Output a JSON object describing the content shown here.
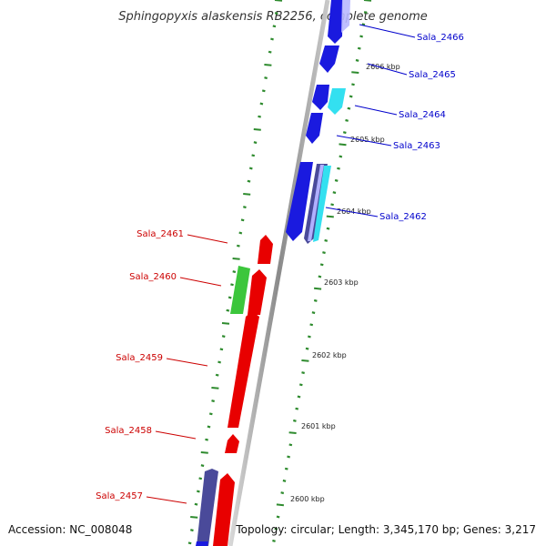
{
  "title": "Sphingopyxis alaskensis RB2256, complete genome",
  "accession": "Accession: NC_008048",
  "summary": "Topology: circular; Length: 3,345,170 bp; Genes: 3,217",
  "colors": {
    "forward": "#1a1adf",
    "reverse": "#e80000",
    "cyan": "#33e0f0",
    "green": "#3cc63c",
    "purple": "#4a4a9a",
    "backbone": "#999999",
    "ticks": "#2e8b2e",
    "label_forward": "#0000cc",
    "label_reverse": "#cc0000"
  },
  "scale_labels": [
    "2606 kbp",
    "2605 kbp",
    "2604 kbp",
    "2603 kbp",
    "2602 kbp",
    "2601 kbp",
    "2600 kbp"
  ],
  "genes_forward": [
    "Sala_2466",
    "Sala_2465",
    "Sala_2464",
    "Sala_2463",
    "Sala_2462"
  ],
  "genes_reverse": [
    "Sala_2461",
    "Sala_2460",
    "Sala_2459",
    "Sala_2458",
    "Sala_2457"
  ]
}
